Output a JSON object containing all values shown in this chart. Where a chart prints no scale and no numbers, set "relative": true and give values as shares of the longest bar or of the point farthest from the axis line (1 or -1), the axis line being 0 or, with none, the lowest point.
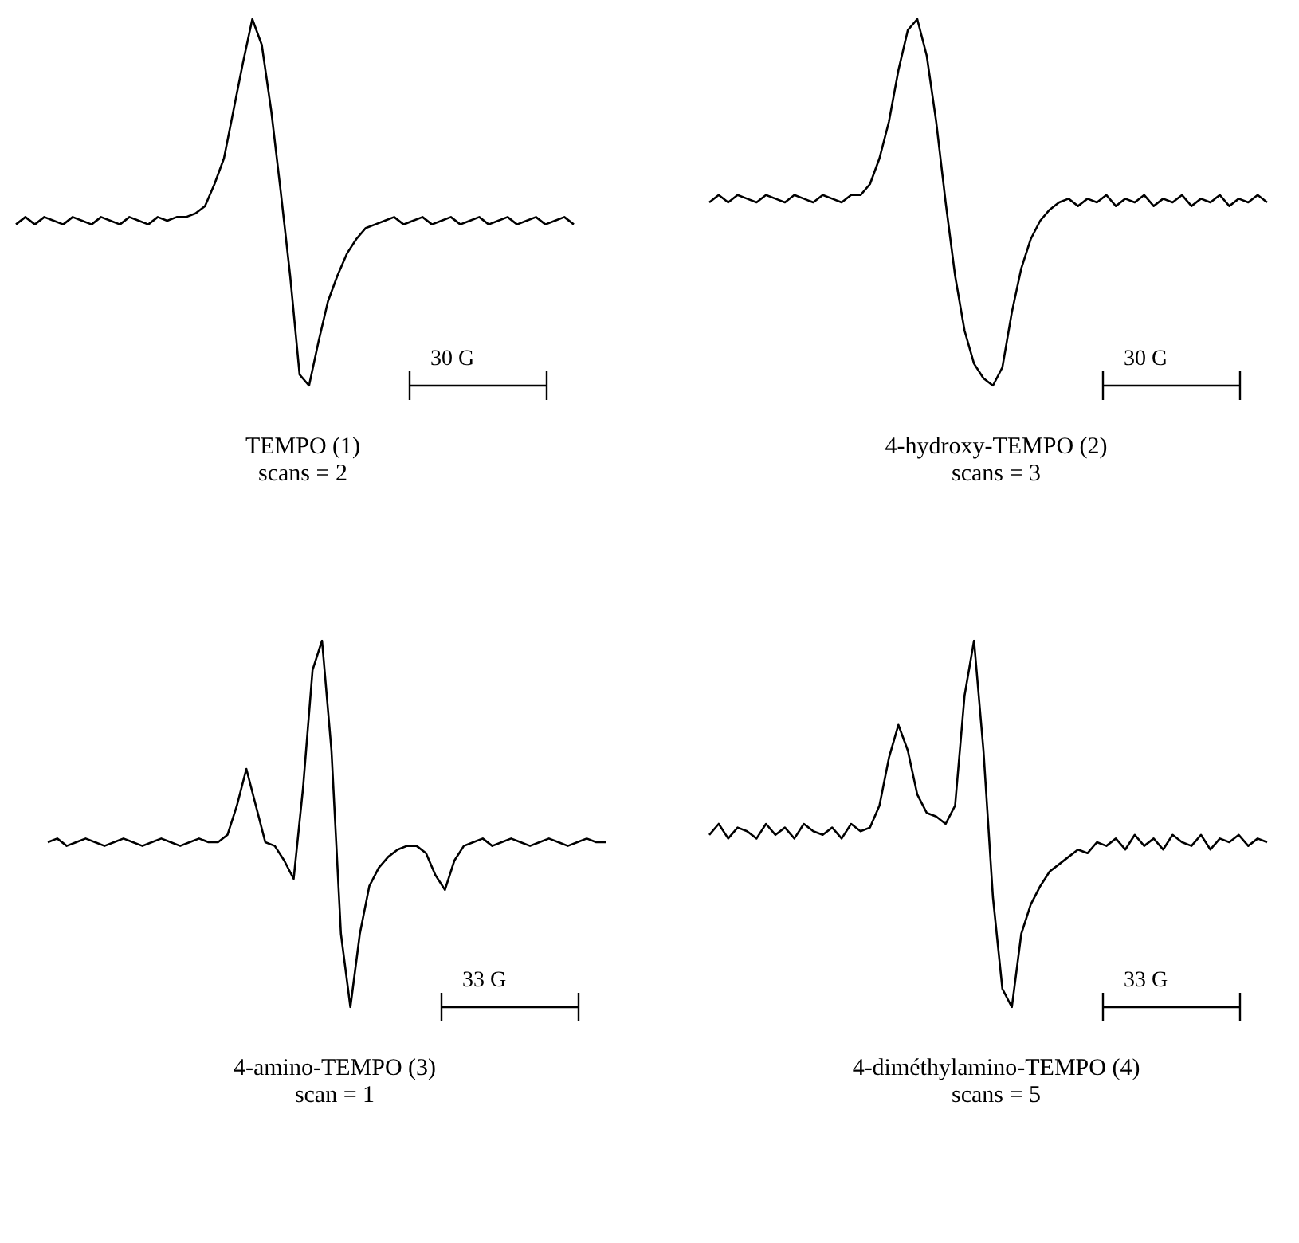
{
  "chart_data": [
    {
      "type": "line",
      "title": "TEMPO (1)",
      "subtitle": "scans = 2",
      "relative": true,
      "annotations": [
        "30 G"
      ],
      "color": "#000000",
      "categories": [
        null,
        null,
        null,
        null,
        null,
        null,
        null,
        null,
        null,
        null,
        null,
        null,
        null,
        null,
        null,
        null,
        null,
        null,
        null,
        null,
        null,
        null,
        null,
        null,
        null,
        null,
        null,
        null,
        null,
        null,
        null,
        null,
        null,
        null,
        null,
        null,
        null,
        null,
        null,
        null,
        null,
        null,
        null,
        null,
        null,
        null,
        null,
        null,
        null,
        null,
        null,
        null,
        null,
        null,
        null,
        null,
        null,
        null,
        null,
        null
      ],
      "values": [
        0.44,
        0.46,
        0.44,
        0.46,
        0.45,
        0.44,
        0.46,
        0.45,
        0.44,
        0.46,
        0.45,
        0.44,
        0.46,
        0.45,
        0.44,
        0.46,
        0.45,
        0.46,
        0.46,
        0.47,
        0.49,
        0.55,
        0.62,
        0.75,
        0.88,
        1.0,
        0.93,
        0.75,
        0.53,
        0.3,
        0.03,
        0.0,
        0.12,
        0.23,
        0.3,
        0.36,
        0.4,
        0.43,
        0.44,
        0.45,
        0.46,
        0.44,
        0.45,
        0.46,
        0.44,
        0.45,
        0.46,
        0.44,
        0.45,
        0.46,
        0.44,
        0.45,
        0.46,
        0.44,
        0.45,
        0.46,
        0.44,
        0.45,
        0.46,
        0.44
      ]
    },
    {
      "type": "line",
      "title": "4-hydroxy-TEMPO (2)",
      "subtitle": "scans = 3",
      "relative": true,
      "annotations": [
        "30 G"
      ],
      "color": "#000000",
      "categories": [
        null,
        null,
        null,
        null,
        null,
        null,
        null,
        null,
        null,
        null,
        null,
        null,
        null,
        null,
        null,
        null,
        null,
        null,
        null,
        null,
        null,
        null,
        null,
        null,
        null,
        null,
        null,
        null,
        null,
        null,
        null,
        null,
        null,
        null,
        null,
        null,
        null,
        null,
        null,
        null,
        null,
        null,
        null,
        null,
        null,
        null,
        null,
        null,
        null,
        null,
        null,
        null,
        null,
        null,
        null,
        null,
        null,
        null,
        null,
        null
      ],
      "values": [
        0.5,
        0.52,
        0.5,
        0.52,
        0.51,
        0.5,
        0.52,
        0.51,
        0.5,
        0.52,
        0.51,
        0.5,
        0.52,
        0.51,
        0.5,
        0.52,
        0.52,
        0.55,
        0.62,
        0.72,
        0.86,
        0.97,
        1.0,
        0.9,
        0.72,
        0.5,
        0.3,
        0.15,
        0.06,
        0.02,
        0.0,
        0.05,
        0.2,
        0.32,
        0.4,
        0.45,
        0.48,
        0.5,
        0.51,
        0.49,
        0.51,
        0.5,
        0.52,
        0.49,
        0.51,
        0.5,
        0.52,
        0.49,
        0.51,
        0.5,
        0.52,
        0.49,
        0.51,
        0.5,
        0.52,
        0.49,
        0.51,
        0.5,
        0.52,
        0.5
      ]
    },
    {
      "type": "line",
      "title": "4-amino-TEMPO (3)",
      "subtitle": "scan = 1",
      "relative": true,
      "annotations": [
        "33 G"
      ],
      "color": "#000000",
      "categories": [
        null,
        null,
        null,
        null,
        null,
        null,
        null,
        null,
        null,
        null,
        null,
        null,
        null,
        null,
        null,
        null,
        null,
        null,
        null,
        null,
        null,
        null,
        null,
        null,
        null,
        null,
        null,
        null,
        null,
        null,
        null,
        null,
        null,
        null,
        null,
        null,
        null,
        null,
        null,
        null,
        null,
        null,
        null,
        null,
        null,
        null,
        null,
        null,
        null,
        null,
        null,
        null,
        null,
        null,
        null,
        null,
        null,
        null,
        null,
        null
      ],
      "values": [
        0.45,
        0.46,
        0.44,
        0.45,
        0.46,
        0.45,
        0.44,
        0.45,
        0.46,
        0.45,
        0.44,
        0.45,
        0.46,
        0.45,
        0.44,
        0.45,
        0.46,
        0.45,
        0.45,
        0.47,
        0.55,
        0.65,
        0.55,
        0.45,
        0.44,
        0.4,
        0.35,
        0.6,
        0.92,
        1.0,
        0.7,
        0.2,
        0.0,
        0.2,
        0.33,
        0.38,
        0.41,
        0.43,
        0.44,
        0.44,
        0.42,
        0.36,
        0.32,
        0.4,
        0.44,
        0.45,
        0.46,
        0.44,
        0.45,
        0.46,
        0.45,
        0.44,
        0.45,
        0.46,
        0.45,
        0.44,
        0.45,
        0.46,
        0.45,
        0.45
      ]
    },
    {
      "type": "line",
      "title": "4-diméthylamino-TEMPO (4)",
      "subtitle": "scans = 5",
      "relative": true,
      "annotations": [
        "33 G"
      ],
      "color": "#000000",
      "categories": [
        null,
        null,
        null,
        null,
        null,
        null,
        null,
        null,
        null,
        null,
        null,
        null,
        null,
        null,
        null,
        null,
        null,
        null,
        null,
        null,
        null,
        null,
        null,
        null,
        null,
        null,
        null,
        null,
        null,
        null,
        null,
        null,
        null,
        null,
        null,
        null,
        null,
        null,
        null,
        null,
        null,
        null,
        null,
        null,
        null,
        null,
        null,
        null,
        null,
        null,
        null,
        null,
        null,
        null,
        null,
        null,
        null,
        null,
        null,
        null
      ],
      "values": [
        0.47,
        0.5,
        0.46,
        0.49,
        0.48,
        0.46,
        0.5,
        0.47,
        0.49,
        0.46,
        0.5,
        0.48,
        0.47,
        0.49,
        0.46,
        0.5,
        0.48,
        0.49,
        0.55,
        0.68,
        0.77,
        0.7,
        0.58,
        0.53,
        0.52,
        0.5,
        0.55,
        0.85,
        1.0,
        0.7,
        0.3,
        0.05,
        0.0,
        0.2,
        0.28,
        0.33,
        0.37,
        0.39,
        0.41,
        0.43,
        0.42,
        0.45,
        0.44,
        0.46,
        0.43,
        0.47,
        0.44,
        0.46,
        0.43,
        0.47,
        0.45,
        0.44,
        0.47,
        0.43,
        0.46,
        0.45,
        0.47,
        0.44,
        0.46,
        0.45
      ]
    }
  ]
}
